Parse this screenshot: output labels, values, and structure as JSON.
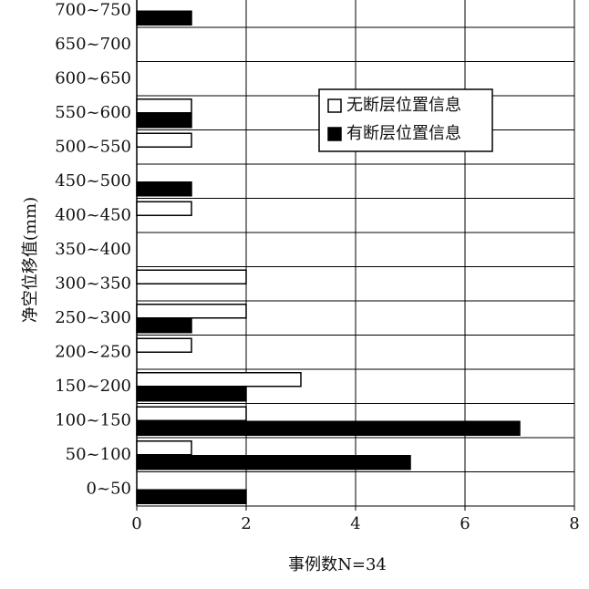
{
  "chart_data": {
    "type": "bar",
    "orientation": "horizontal",
    "x_label": "事例数N=34",
    "y_label": "净空位移值(mm)",
    "categories": [
      "0~50",
      "50~100",
      "100~150",
      "150~200",
      "200~250",
      "250~300",
      "300~350",
      "350~400",
      "400~450",
      "450~500",
      "500~550",
      "550~600",
      "600~650",
      "650~700",
      "700~750"
    ],
    "series": [
      {
        "name": "无断层位置信息",
        "color": "#ffffff",
        "values": [
          0,
          1,
          2,
          3,
          1,
          2,
          2,
          0,
          1,
          0,
          1,
          1,
          0,
          0,
          0
        ]
      },
      {
        "name": "有断层位置信息",
        "color": "#000000",
        "values": [
          2,
          5,
          7,
          2,
          0,
          1,
          0,
          0,
          0,
          1,
          0,
          1,
          0,
          0,
          1
        ]
      }
    ],
    "xlim": [
      0,
      8
    ],
    "xticks": [
      0,
      2,
      4,
      6,
      8
    ],
    "grid": true
  }
}
